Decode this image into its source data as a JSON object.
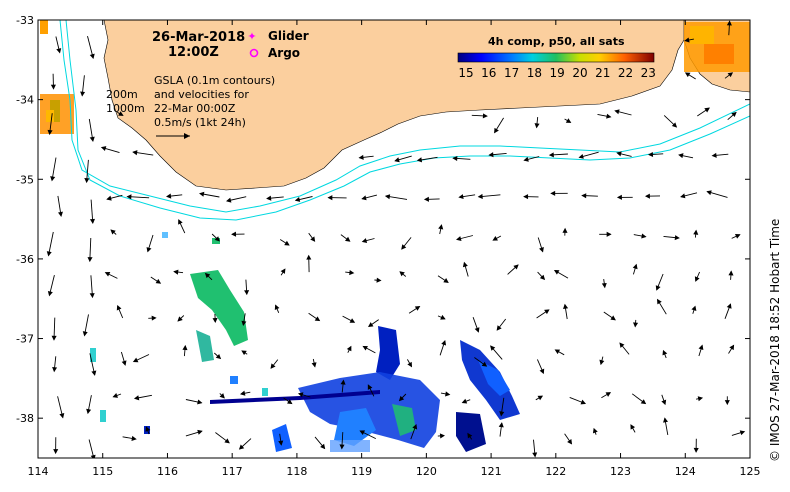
{
  "map": {
    "datetime": "26-Mar-2018",
    "time": "12:00Z",
    "legend": {
      "glider": "Glider",
      "argo": "Argo",
      "glider_color": "#ff00ff",
      "argo_color": "#ff00ff"
    },
    "contours": {
      "isobath_200": "200m",
      "isobath_1000": "1000m",
      "isobath_color": "#00d8e0"
    },
    "gsla": {
      "line1": "GSLA (0.1m contours)",
      "line2": "and velocities for",
      "line3": "22-Mar 00:00Z",
      "line4": "0.5m/s (1kt 24h)"
    },
    "colorbar": {
      "title": "4h comp, p50, all sats",
      "ticks": [
        "15",
        "16",
        "17",
        "18",
        "19",
        "20",
        "21",
        "22",
        "23"
      ],
      "min": 15,
      "max": 23.6
    },
    "axes": {
      "x_ticks": [
        "114",
        "115",
        "116",
        "117",
        "118",
        "119",
        "120",
        "121",
        "122",
        "123",
        "124",
        "125"
      ],
      "y_ticks": [
        "-33",
        "-34",
        "-35",
        "-36",
        "-37",
        "-38"
      ],
      "lon_range": [
        114,
        125
      ],
      "lat_range": [
        -38.5,
        -33
      ]
    },
    "credit": "© IMOS 27-Mar-2018 18:52 Hobart Time",
    "colors": {
      "land": "#fbcf9e",
      "ocean": "#ffffff",
      "frame": "#000000"
    }
  }
}
